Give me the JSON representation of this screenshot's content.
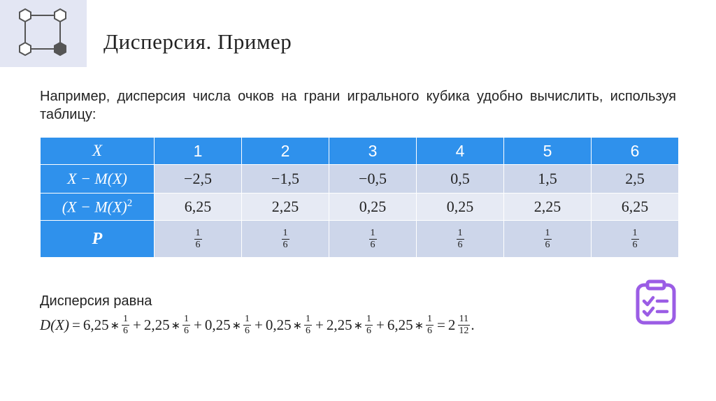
{
  "header": {
    "title": "Дисперсия. Пример"
  },
  "intro_text": "Например, дисперсия числа очков на грани игрального кубика удобно вычислить, используя таблицу:",
  "table": {
    "header_label": "X",
    "columns": [
      "1",
      "2",
      "3",
      "4",
      "5",
      "6"
    ],
    "row_deviation": {
      "label": "X − M(X)",
      "values": [
        "−2,5",
        "−1,5",
        "−0,5",
        "0,5",
        "1,5",
        "2,5"
      ]
    },
    "row_squared": {
      "label_base": "(X − M(X)",
      "label_exp": "2",
      "values": [
        "6,25",
        "2,25",
        "0,25",
        "0,25",
        "2,25",
        "6,25"
      ]
    },
    "row_probability": {
      "label": "P",
      "numerator": "1",
      "denominator": "6"
    }
  },
  "result": {
    "label": "Дисперсия равна",
    "lhs": "D(X)",
    "equals": "=",
    "terms": [
      "6,25",
      "2,25",
      "0,25",
      "0,25",
      "2,25",
      "6,25"
    ],
    "multiply": "∗",
    "plus": "+",
    "frac_num": "1",
    "frac_den": "6",
    "answer_whole": "2",
    "answer_num": "11",
    "answer_den": "12",
    "end_mark": "."
  },
  "colors": {
    "header_blue": "#2f91ec",
    "row_dark": "#cdd6ea",
    "row_light": "#e6eaf4",
    "logo_bg": "#e3e6f3",
    "icon_purple": "#9b5de5"
  },
  "icons": [
    "hexagon-network-logo",
    "checklist-icon"
  ]
}
